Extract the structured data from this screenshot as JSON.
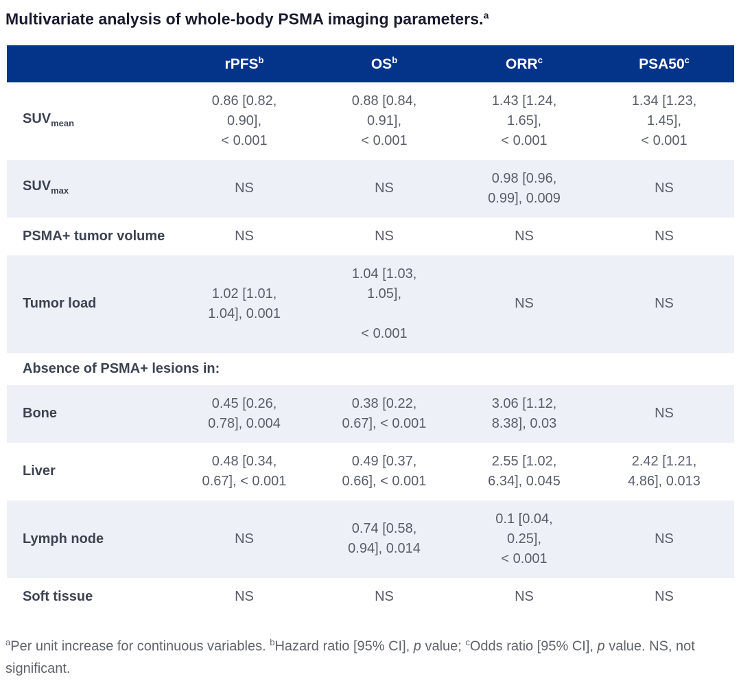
{
  "page": {
    "title": {
      "text": "Multivariate analysis of whole-body PSMA imaging parameters.",
      "sup": "a"
    }
  },
  "colors": {
    "header_bg": "#04338a",
    "header_text": "#ffffff",
    "stripe_bg": "#edf1f7",
    "title_text": "#191b2e",
    "label_text": "#3d4352",
    "value_text": "#585d68",
    "footnote_text": "#5f6368"
  },
  "table": {
    "columns": [
      {
        "key": "rpfs",
        "label": "rPFS",
        "sup": "b"
      },
      {
        "key": "os",
        "label": "OS",
        "sup": "b"
      },
      {
        "key": "orr",
        "label": "ORR",
        "sup": "c"
      },
      {
        "key": "psa50",
        "label": "PSA50",
        "sup": "c"
      }
    ],
    "rows": [
      {
        "id": "suvmean",
        "type": "data",
        "stripe": false,
        "label": {
          "base": "SUV",
          "sub": "mean"
        },
        "cells": [
          [
            "0.86 [0.82,",
            "0.90],",
            "< 0.001"
          ],
          [
            "0.88 [0.84,",
            "0.91],",
            "< 0.001"
          ],
          [
            "1.43 [1.24,",
            "1.65],",
            "< 0.001"
          ],
          [
            "1.34 [1.23,",
            "1.45],",
            "< 0.001"
          ]
        ]
      },
      {
        "id": "suvmax",
        "type": "data",
        "stripe": true,
        "label": {
          "base": "SUV",
          "sub": "max"
        },
        "cells": [
          [
            "NS"
          ],
          [
            "NS"
          ],
          [
            "0.98 [0.96,",
            "0.99], 0.009"
          ],
          [
            "NS"
          ]
        ]
      },
      {
        "id": "psma-tumor-volume",
        "type": "data",
        "stripe": false,
        "label": {
          "base": "PSMA+ tumor volume"
        },
        "cells": [
          [
            "NS"
          ],
          [
            "NS"
          ],
          [
            "NS"
          ],
          [
            "NS"
          ]
        ]
      },
      {
        "id": "tumor-load",
        "type": "data",
        "stripe": true,
        "label": {
          "base": "Tumor load"
        },
        "cells": [
          [
            "1.02 [1.01,",
            "1.04], 0.001"
          ],
          [
            "1.04 [1.03,",
            "1.05],",
            "",
            "< 0.001"
          ],
          [
            "NS"
          ],
          [
            "NS"
          ]
        ]
      },
      {
        "id": "absence-section",
        "type": "section",
        "stripe": false,
        "label": {
          "base": "Absence of PSMA+ lesions in:"
        }
      },
      {
        "id": "bone",
        "type": "data",
        "stripe": true,
        "label": {
          "base": "Bone"
        },
        "cells": [
          [
            "0.45 [0.26,",
            "0.78], 0.004"
          ],
          [
            "0.38 [0.22,",
            "0.67], < 0.001"
          ],
          [
            "3.06 [1.12,",
            "8.38], 0.03"
          ],
          [
            "NS"
          ]
        ]
      },
      {
        "id": "liver",
        "type": "data",
        "stripe": false,
        "label": {
          "base": "Liver"
        },
        "cells": [
          [
            "0.48 [0.34,",
            "0.67], < 0.001"
          ],
          [
            "0.49 [0.37,",
            "0.66], < 0.001"
          ],
          [
            "2.55 [1.02,",
            "6.34], 0.045"
          ],
          [
            "2.42 [1.21,",
            "4.86], 0.013"
          ]
        ]
      },
      {
        "id": "lymph-node",
        "type": "data",
        "stripe": true,
        "label": {
          "base": "Lymph node"
        },
        "cells": [
          [
            "NS"
          ],
          [
            "0.74 [0.58,",
            "0.94], 0.014"
          ],
          [
            "0.1 [0.04,",
            "0.25],",
            "< 0.001"
          ],
          [
            "NS"
          ]
        ]
      },
      {
        "id": "soft-tissue",
        "type": "data",
        "stripe": false,
        "label": {
          "base": "Soft tissue"
        },
        "cells": [
          [
            "NS"
          ],
          [
            "NS"
          ],
          [
            "NS"
          ],
          [
            "NS"
          ]
        ]
      }
    ]
  },
  "footnote": {
    "segments": [
      {
        "t": "sup",
        "v": "a"
      },
      {
        "t": "text",
        "v": "Per unit increase for continuous variables. "
      },
      {
        "t": "sup",
        "v": "b"
      },
      {
        "t": "text",
        "v": "Hazard ratio [95% CI], "
      },
      {
        "t": "italic",
        "v": "p"
      },
      {
        "t": "text",
        "v": " value; "
      },
      {
        "t": "sup",
        "v": "c"
      },
      {
        "t": "text",
        "v": "Odds ratio [95% CI], "
      },
      {
        "t": "italic",
        "v": "p"
      },
      {
        "t": "text",
        "v": " value. NS, not significant."
      }
    ]
  }
}
